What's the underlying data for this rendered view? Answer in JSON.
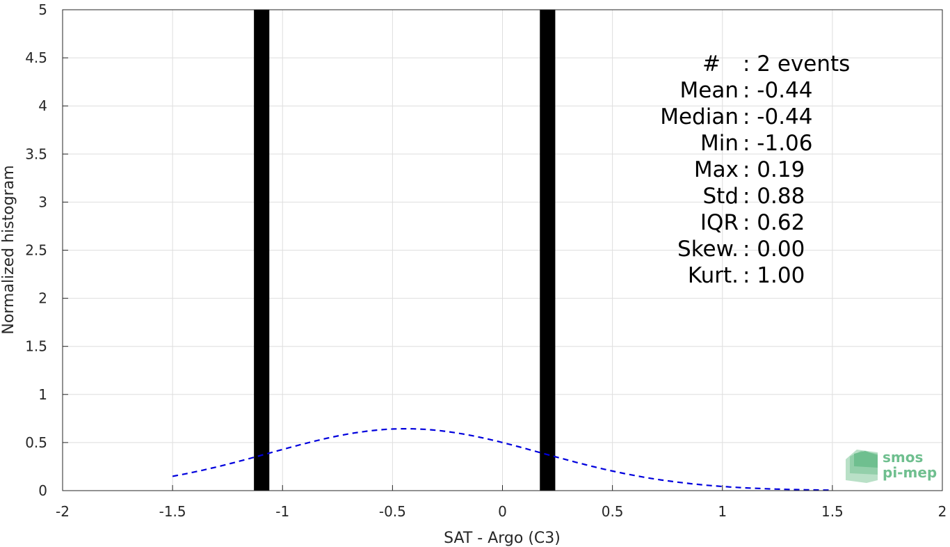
{
  "chart_data": {
    "type": "bar",
    "xlabel": "SAT - Argo (C3)",
    "ylabel": "Normalized histogram",
    "xlim": [
      -2,
      2
    ],
    "ylim": [
      0,
      5
    ],
    "x_ticks": [
      "-2",
      "-1.5",
      "-1",
      "-0.5",
      "0",
      "0.5",
      "1",
      "1.5",
      "2"
    ],
    "y_ticks": [
      "0",
      "0.5",
      "1",
      "1.5",
      "2",
      "2.5",
      "3",
      "3.5",
      "4",
      "4.5",
      "5"
    ],
    "grid": true,
    "bars": [
      {
        "x_start": -1.13,
        "x_end": -1.06,
        "value": 5
      },
      {
        "x_start": 0.17,
        "x_end": 0.24,
        "value": 5
      }
    ],
    "bar_color": "#000000",
    "fit_curve": {
      "style": "dashed",
      "color": "#0000dd",
      "mean": -0.44,
      "std": 0.62,
      "x_range": [
        -1.5,
        1.5
      ]
    },
    "stats": [
      {
        "label": "#",
        "value": ": 2 events"
      },
      {
        "label": "Mean",
        "value": ": -0.44"
      },
      {
        "label": "Median",
        "value": ": -0.44"
      },
      {
        "label": "Min",
        "value": ": -1.06"
      },
      {
        "label": "Max",
        "value": ": 0.19"
      },
      {
        "label": "Std",
        "value": ": 0.88"
      },
      {
        "label": "IQR",
        "value": ": 0.62"
      },
      {
        "label": "Skew.",
        "value": ": 0.00"
      },
      {
        "label": "Kurt.",
        "value": ": 1.00"
      }
    ]
  },
  "logo": {
    "line1": "smos",
    "line2": "pi-mep",
    "color": "#6fbf8f"
  }
}
